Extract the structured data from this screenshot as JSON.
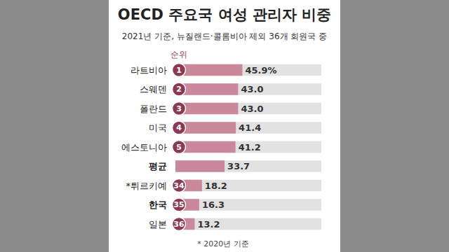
{
  "chart_data": {
    "type": "bar",
    "title": "OECD 주요국 여성 관리자 비중",
    "subtitle": "2021년 기준, 뉴질랜드·콜롬비아 제외 36개 회원국 중",
    "rank_header": "순위",
    "categories": [
      "라트비아",
      "스웨덴",
      "폴란드",
      "미국",
      "에스토니아",
      "평균",
      "*튀르키예",
      "한국",
      "일본"
    ],
    "values": [
      45.9,
      43.0,
      43.0,
      41.4,
      41.2,
      33.7,
      18.2,
      16.3,
      13.2
    ],
    "value_labels": [
      "45.9%",
      "43.0",
      "43.0",
      "41.4",
      "41.2",
      "33.7",
      "18.2",
      "16.3",
      "13.2"
    ],
    "ranks": [
      1,
      2,
      3,
      4,
      5,
      null,
      34,
      35,
      36
    ],
    "footnote": "* 2020년 기준",
    "color": "#c9899b",
    "orientation": "horizontal",
    "xlim": [
      0,
      100
    ],
    "data_labels": true,
    "tick_labels": false,
    "grid": false
  }
}
